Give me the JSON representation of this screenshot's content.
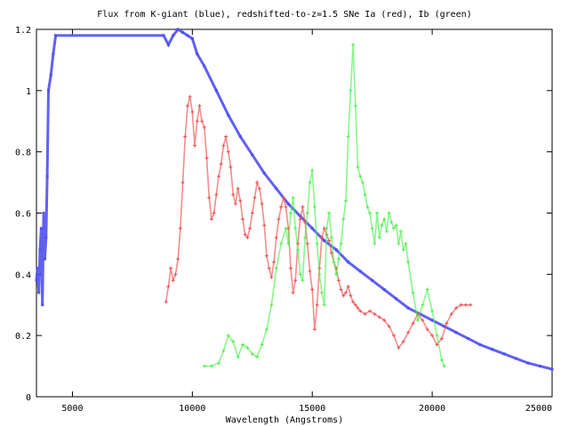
{
  "chart_data": {
    "type": "scatter",
    "title": "Flux from K-giant (blue), redshifted-to-z=1.5 SNe Ia (red), Ib (green)",
    "xlabel": "Wavelength (Angstroms)",
    "ylabel": "",
    "xlim": [
      3500,
      25000
    ],
    "ylim": [
      0,
      1.2
    ],
    "xticks": [
      5000,
      10000,
      15000,
      20000,
      25000
    ],
    "xtick_labels": [
      "5000",
      "10000",
      "15000",
      "20000",
      "25000"
    ],
    "yticks": [
      0,
      0.2,
      0.4,
      0.6,
      0.8,
      1,
      1.2
    ],
    "ytick_labels": [
      "0",
      "0.2",
      "0.4",
      "0.6",
      "0.8",
      "1",
      "1.2"
    ],
    "grid": false,
    "legend": "none",
    "series": [
      {
        "color": "#5050f0",
        "marker": "square",
        "x": [
          3500,
          3550,
          3600,
          3650,
          3700,
          3750,
          3800,
          3850,
          3900,
          3950,
          4000,
          4100,
          4200,
          4300,
          8800,
          9000,
          9200,
          9400,
          9600,
          9800,
          10000,
          10200,
          10500,
          11000,
          11500,
          12000,
          12500,
          13000,
          13500,
          14000,
          14500,
          15000,
          15500,
          16000,
          16500,
          17000,
          17500,
          18000,
          18500,
          19000,
          19500,
          20000,
          20500,
          21000,
          21500,
          22000,
          22500,
          23000,
          23500,
          24000,
          24500,
          25000
        ],
        "y": [
          0.38,
          0.42,
          0.34,
          0.48,
          0.55,
          0.3,
          0.6,
          0.45,
          0.52,
          0.72,
          1.0,
          1.05,
          1.12,
          1.18,
          1.18,
          1.15,
          1.18,
          1.2,
          1.19,
          1.18,
          1.17,
          1.12,
          1.08,
          1.0,
          0.92,
          0.85,
          0.79,
          0.73,
          0.68,
          0.63,
          0.59,
          0.55,
          0.51,
          0.48,
          0.44,
          0.41,
          0.38,
          0.35,
          0.32,
          0.29,
          0.27,
          0.25,
          0.23,
          0.21,
          0.19,
          0.17,
          0.155,
          0.14,
          0.125,
          0.11,
          0.1,
          0.09
        ]
      },
      {
        "color": "#f05050",
        "marker": "plus",
        "x": [
          8900,
          9000,
          9100,
          9200,
          9300,
          9400,
          9500,
          9600,
          9700,
          9800,
          9900,
          10000,
          10100,
          10200,
          10300,
          10400,
          10500,
          10600,
          10700,
          10800,
          10900,
          11000,
          11100,
          11200,
          11300,
          11400,
          11500,
          11600,
          11700,
          11800,
          11900,
          12000,
          12100,
          12200,
          12300,
          12400,
          12500,
          12600,
          12700,
          12800,
          12900,
          13000,
          13100,
          13200,
          13300,
          13400,
          13500,
          13600,
          13700,
          13800,
          13900,
          14000,
          14100,
          14200,
          14300,
          14400,
          14500,
          14600,
          14700,
          14800,
          14900,
          15000,
          15100,
          15200,
          15300,
          15400,
          15500,
          15600,
          15700,
          15800,
          15900,
          16000,
          16100,
          16200,
          16300,
          16400,
          16500,
          16600,
          16700,
          16800,
          16900,
          17000,
          17200,
          17400,
          17600,
          17800,
          18000,
          18200,
          18400,
          18600,
          18800,
          19000,
          19200,
          19400,
          19600,
          19800,
          20000,
          20200,
          20400,
          20600,
          20800,
          21000,
          21200,
          21400,
          21600
        ],
        "y": [
          0.31,
          0.36,
          0.42,
          0.38,
          0.4,
          0.45,
          0.55,
          0.7,
          0.85,
          0.95,
          0.98,
          0.93,
          0.82,
          0.9,
          0.95,
          0.9,
          0.88,
          0.78,
          0.65,
          0.58,
          0.6,
          0.66,
          0.72,
          0.76,
          0.82,
          0.85,
          0.8,
          0.75,
          0.66,
          0.63,
          0.68,
          0.64,
          0.58,
          0.53,
          0.52,
          0.55,
          0.6,
          0.65,
          0.7,
          0.68,
          0.63,
          0.56,
          0.46,
          0.42,
          0.39,
          0.44,
          0.52,
          0.58,
          0.62,
          0.65,
          0.62,
          0.55,
          0.42,
          0.34,
          0.38,
          0.5,
          0.58,
          0.62,
          0.57,
          0.5,
          0.41,
          0.35,
          0.22,
          0.3,
          0.42,
          0.52,
          0.55,
          0.53,
          0.51,
          0.47,
          0.44,
          0.42,
          0.38,
          0.35,
          0.33,
          0.34,
          0.36,
          0.33,
          0.31,
          0.3,
          0.29,
          0.28,
          0.27,
          0.28,
          0.27,
          0.26,
          0.25,
          0.23,
          0.2,
          0.16,
          0.18,
          0.21,
          0.24,
          0.27,
          0.25,
          0.22,
          0.2,
          0.17,
          0.19,
          0.24,
          0.27,
          0.29,
          0.3,
          0.3,
          0.3
        ]
      },
      {
        "color": "#50f050",
        "marker": "plus",
        "x": [
          10500,
          10800,
          11100,
          11300,
          11500,
          11700,
          11900,
          12100,
          12300,
          12500,
          12700,
          12900,
          13100,
          13300,
          13500,
          13700,
          13900,
          14000,
          14100,
          14200,
          14300,
          14400,
          14500,
          14600,
          14700,
          14800,
          14900,
          15000,
          15100,
          15200,
          15300,
          15400,
          15500,
          15600,
          15700,
          15800,
          15900,
          16000,
          16100,
          16200,
          16300,
          16400,
          16500,
          16600,
          16700,
          16800,
          16900,
          17000,
          17100,
          17200,
          17300,
          17400,
          17500,
          17600,
          17700,
          17800,
          17900,
          18000,
          18100,
          18200,
          18300,
          18400,
          18500,
          18600,
          18700,
          18800,
          18900,
          19000,
          19200,
          19400,
          19600,
          19800,
          20000,
          20200,
          20400,
          20500
        ],
        "y": [
          0.1,
          0.1,
          0.11,
          0.15,
          0.2,
          0.18,
          0.13,
          0.17,
          0.16,
          0.14,
          0.13,
          0.17,
          0.22,
          0.3,
          0.42,
          0.5,
          0.55,
          0.5,
          0.6,
          0.65,
          0.55,
          0.48,
          0.4,
          0.38,
          0.52,
          0.6,
          0.7,
          0.74,
          0.62,
          0.5,
          0.4,
          0.34,
          0.3,
          0.55,
          0.6,
          0.52,
          0.44,
          0.4,
          0.45,
          0.5,
          0.58,
          0.64,
          0.85,
          1.0,
          1.15,
          0.95,
          0.75,
          0.72,
          0.7,
          0.66,
          0.62,
          0.6,
          0.55,
          0.5,
          0.6,
          0.52,
          0.56,
          0.58,
          0.54,
          0.6,
          0.57,
          0.55,
          0.56,
          0.5,
          0.54,
          0.48,
          0.5,
          0.44,
          0.34,
          0.25,
          0.3,
          0.35,
          0.28,
          0.2,
          0.12,
          0.1
        ]
      }
    ]
  }
}
